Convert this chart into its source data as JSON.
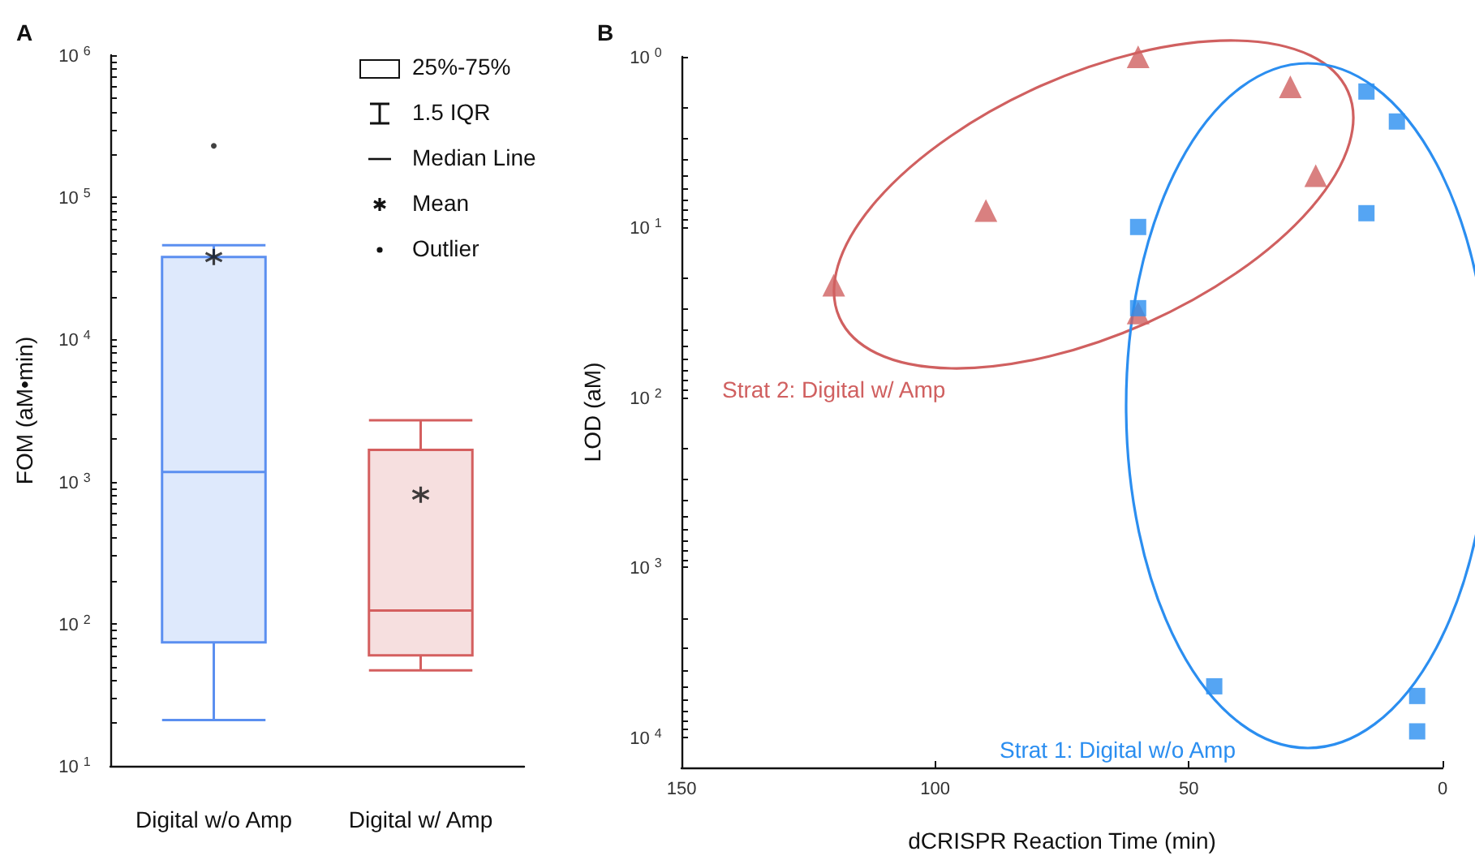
{
  "chart_data": [
    {
      "type": "box",
      "title": "A",
      "ylabel": "FOM (aM•min)",
      "categories": [
        "Digital w/o Amp",
        "Digital w/ Amp"
      ],
      "boxes": [
        {
          "low": 21,
          "q1": 74,
          "median": 1170,
          "q3": 38000,
          "high": 46000,
          "mean": 38000,
          "outliers": [
            230000
          ]
        },
        {
          "low": 47,
          "q1": 60,
          "median": 124,
          "q3": 1670,
          "high": 2700,
          "mean": 810
        }
      ],
      "colors": [
        "#5b8ff0",
        "#d45f5f"
      ],
      "log": true,
      "ylim": [
        10,
        1000000
      ],
      "yticks": [
        {
          "value": 10,
          "label": "10$^{1}$"
        },
        {
          "value": 20,
          "label": null
        },
        {
          "value": 30,
          "label": null
        },
        {
          "value": 40,
          "label": null
        },
        {
          "value": 50,
          "label": null
        },
        {
          "value": 60,
          "label": null
        },
        {
          "value": 70,
          "label": null
        },
        {
          "value": 80,
          "label": null
        },
        {
          "value": 90,
          "label": null
        },
        {
          "value": 100,
          "label": "10$^{2}$"
        },
        {
          "value": 200,
          "label": null
        },
        {
          "value": 300,
          "label": null
        },
        {
          "value": 400,
          "label": null
        },
        {
          "value": 500,
          "label": null
        },
        {
          "value": 600,
          "label": null
        },
        {
          "value": 700,
          "label": null
        },
        {
          "value": 800,
          "label": null
        },
        {
          "value": 900,
          "label": null
        },
        {
          "value": 1000,
          "label": "10$^{3}$"
        },
        {
          "value": 2000,
          "label": null
        },
        {
          "value": 3000,
          "label": null
        },
        {
          "value": 4000,
          "label": null
        },
        {
          "value": 5000,
          "label": null
        },
        {
          "value": 6000,
          "label": null
        },
        {
          "value": 7000,
          "label": null
        },
        {
          "value": 8000,
          "label": null
        },
        {
          "value": 9000,
          "label": null
        },
        {
          "value": 10000,
          "label": "10$^{4}$"
        },
        {
          "value": 20000,
          "label": null
        },
        {
          "value": 30000,
          "label": null
        },
        {
          "value": 40000,
          "label": null
        },
        {
          "value": 50000,
          "label": null
        },
        {
          "value": 60000,
          "label": null
        },
        {
          "value": 70000,
          "label": null
        },
        {
          "value": 80000,
          "label": null
        },
        {
          "value": 90000,
          "label": null
        },
        {
          "value": 100000,
          "label": "10$^{5}$"
        },
        {
          "value": 200000,
          "label": null
        },
        {
          "value": 300000,
          "label": null
        },
        {
          "value": 400000,
          "label": null
        },
        {
          "value": 500000,
          "label": null
        },
        {
          "value": 600000,
          "label": null
        },
        {
          "value": 700000,
          "label": null
        },
        {
          "value": 800000,
          "label": null
        },
        {
          "value": 900000,
          "label": null
        },
        {
          "value": 1000000,
          "label": "10$^{6}$"
        }
      ],
      "annotations": [
        "25%-75%",
        "1.5 IQR",
        "Median Line",
        "Mean",
        "Outlier"
      ]
    },
    {
      "type": "scatter",
      "title": "B",
      "xlabel": "dCRISPR Reaction Time (min)",
      "ylabel": "LOD (aM)",
      "xlim": [
        150,
        0
      ],
      "xticks": [
        150,
        100,
        50,
        0
      ],
      "log": "y",
      "ylim": [
        15000,
        1
      ],
      "yticks": [
        {
          "value": 1,
          "label": "10$^{0}$"
        },
        {
          "value": 2,
          "label": null
        },
        {
          "value": 3,
          "label": null
        },
        {
          "value": 4,
          "label": null
        },
        {
          "value": 5,
          "label": null
        },
        {
          "value": 6,
          "label": null
        },
        {
          "value": 7,
          "label": null
        },
        {
          "value": 8,
          "label": null
        },
        {
          "value": 9,
          "label": null
        },
        {
          "value": 10,
          "label": "10$^{1}$"
        },
        {
          "value": 20,
          "label": null
        },
        {
          "value": 30,
          "label": null
        },
        {
          "value": 40,
          "label": null
        },
        {
          "value": 50,
          "label": null
        },
        {
          "value": 60,
          "label": null
        },
        {
          "value": 70,
          "label": null
        },
        {
          "value": 80,
          "label": null
        },
        {
          "value": 90,
          "label": null
        },
        {
          "value": 100,
          "label": "10$^{2}$"
        },
        {
          "value": 200,
          "label": null
        },
        {
          "value": 300,
          "label": null
        },
        {
          "value": 400,
          "label": null
        },
        {
          "value": 500,
          "label": null
        },
        {
          "value": 600,
          "label": null
        },
        {
          "value": 700,
          "label": null
        },
        {
          "value": 800,
          "label": null
        },
        {
          "value": 900,
          "label": null
        },
        {
          "value": 1000,
          "label": "10$^{3}$"
        },
        {
          "value": 2000,
          "label": null
        },
        {
          "value": 3000,
          "label": null
        },
        {
          "value": 4000,
          "label": null
        },
        {
          "value": 5000,
          "label": null
        },
        {
          "value": 6000,
          "label": null
        },
        {
          "value": 7000,
          "label": null
        },
        {
          "value": 8000,
          "label": null
        },
        {
          "value": 9000,
          "label": null
        },
        {
          "value": 10000,
          "label": "10$^{4}$"
        }
      ],
      "series": [
        {
          "name": "Strat 2: Digital w/ Amp",
          "color": "#d06060",
          "marker": "triangle",
          "x": [
            60,
            30,
            25,
            90,
            120,
            60
          ],
          "values": [
            1,
            1.5,
            5,
            8,
            22,
            32
          ]
        },
        {
          "name": "Strat 1: Digital w/o Amp",
          "color": "#2b8ef0",
          "marker": "square",
          "x": [
            15,
            9,
            15,
            60,
            60,
            45,
            5,
            5
          ],
          "values": [
            1.6,
            2.4,
            8.3,
            10,
            30,
            5000,
            5700,
            9200
          ]
        }
      ]
    }
  ]
}
